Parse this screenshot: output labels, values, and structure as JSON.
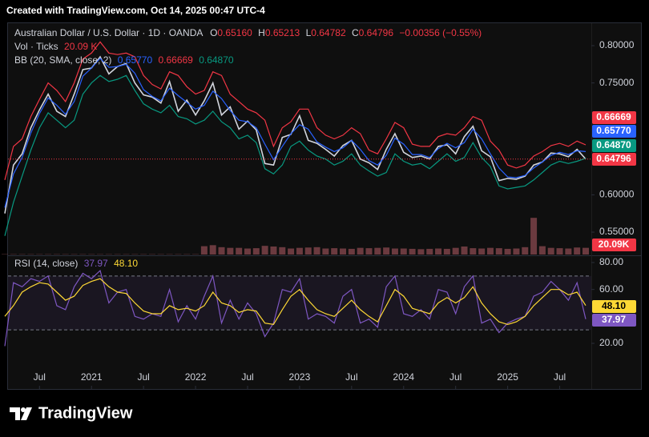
{
  "header": {
    "created": "Created with TradingView.com, Oct 14, 2025 00:47 UTC-4"
  },
  "legend": {
    "symbol": "Australian Dollar / U.S. Dollar · 1D · OANDA",
    "ohlc": [
      {
        "key": "O",
        "value": "0.65160"
      },
      {
        "key": "H",
        "value": "0.65213"
      },
      {
        "key": "L",
        "value": "0.64782"
      },
      {
        "key": "C",
        "value": "0.64796"
      }
    ],
    "change": "−0.00356 (−0.55%)",
    "volume": {
      "title": "Vol · Ticks",
      "value": "20.09 K"
    },
    "bb": {
      "title": "BB (20, SMA, close, 2)",
      "values": [
        "0.65770",
        "0.66669",
        "0.64870"
      ]
    },
    "rsi": {
      "title": "RSI (14, close)",
      "values": [
        "37.97",
        "48.10"
      ]
    }
  },
  "footer": {
    "brand": "TradingView"
  },
  "chart_data": {
    "type": "line",
    "x": [
      "2020-03",
      "2020-04",
      "2020-05",
      "2020-06",
      "2020-07",
      "2020-08",
      "2020-09",
      "2020-10",
      "2020-11",
      "2020-12",
      "2021-01",
      "2021-02",
      "2021-03",
      "2021-04",
      "2021-05",
      "2021-06",
      "2021-07",
      "2021-08",
      "2021-09",
      "2021-10",
      "2021-11",
      "2021-12",
      "2022-01",
      "2022-02",
      "2022-03",
      "2022-04",
      "2022-05",
      "2022-06",
      "2022-07",
      "2022-08",
      "2022-09",
      "2022-10",
      "2022-11",
      "2022-12",
      "2023-01",
      "2023-02",
      "2023-03",
      "2023-04",
      "2023-05",
      "2023-06",
      "2023-07",
      "2023-08",
      "2023-09",
      "2023-10",
      "2023-11",
      "2023-12",
      "2024-01",
      "2024-02",
      "2024-03",
      "2024-04",
      "2024-05",
      "2024-06",
      "2024-07",
      "2024-08",
      "2024-09",
      "2024-10",
      "2024-11",
      "2024-12",
      "2025-01",
      "2025-02",
      "2025-03",
      "2025-04",
      "2025-05",
      "2025-06",
      "2025-07",
      "2025-08",
      "2025-09",
      "2025-10"
    ],
    "xlim": [
      "2020-03",
      "2025-10"
    ],
    "xticks": [
      {
        "value": "2020-07",
        "label": "Jul"
      },
      {
        "value": "2021-01",
        "label": "2021"
      },
      {
        "value": "2021-07",
        "label": "Jul"
      },
      {
        "value": "2022-01",
        "label": "2022"
      },
      {
        "value": "2022-07",
        "label": "Jul"
      },
      {
        "value": "2023-01",
        "label": "2023"
      },
      {
        "value": "2023-07",
        "label": "Jul"
      },
      {
        "value": "2024-01",
        "label": "2024"
      },
      {
        "value": "2024-07",
        "label": "Jul"
      },
      {
        "value": "2025-01",
        "label": "2025"
      },
      {
        "value": "2025-07",
        "label": "Jul"
      }
    ],
    "ylim": [
      0.52,
      0.829
    ],
    "yticks": [
      {
        "value": 0.55,
        "label": "0.55000"
      },
      {
        "value": 0.6,
        "label": "0.60000"
      },
      {
        "value": 0.75,
        "label": "0.75000"
      },
      {
        "value": 0.8,
        "label": "0.80000"
      }
    ],
    "grid": false,
    "series": [
      {
        "color": "#d1d4dc",
        "values": [
          0.575,
          0.64,
          0.655,
          0.69,
          0.714,
          0.735,
          0.712,
          0.705,
          0.735,
          0.768,
          0.77,
          0.785,
          0.762,
          0.772,
          0.776,
          0.75,
          0.734,
          0.731,
          0.723,
          0.752,
          0.712,
          0.727,
          0.707,
          0.726,
          0.75,
          0.707,
          0.718,
          0.688,
          0.699,
          0.687,
          0.642,
          0.64,
          0.677,
          0.681,
          0.706,
          0.673,
          0.669,
          0.661,
          0.652,
          0.666,
          0.673,
          0.648,
          0.643,
          0.634,
          0.661,
          0.682,
          0.657,
          0.65,
          0.652,
          0.648,
          0.665,
          0.667,
          0.655,
          0.678,
          0.692,
          0.659,
          0.651,
          0.619,
          0.622,
          0.621,
          0.625,
          0.64,
          0.644,
          0.656,
          0.655,
          0.651,
          0.661,
          0.648
        ]
      },
      {
        "color": "#f23645",
        "values": [
          0.62,
          0.665,
          0.675,
          0.705,
          0.728,
          0.75,
          0.74,
          0.725,
          0.75,
          0.782,
          0.79,
          0.805,
          0.79,
          0.788,
          0.79,
          0.785,
          0.76,
          0.748,
          0.742,
          0.765,
          0.76,
          0.745,
          0.735,
          0.74,
          0.765,
          0.76,
          0.735,
          0.725,
          0.715,
          0.71,
          0.7,
          0.665,
          0.69,
          0.698,
          0.715,
          0.715,
          0.69,
          0.68,
          0.675,
          0.68,
          0.69,
          0.682,
          0.66,
          0.655,
          0.675,
          0.697,
          0.69,
          0.668,
          0.665,
          0.665,
          0.678,
          0.682,
          0.68,
          0.69,
          0.705,
          0.7,
          0.672,
          0.66,
          0.64,
          0.636,
          0.64,
          0.652,
          0.658,
          0.666,
          0.669,
          0.665,
          0.672,
          0.667
        ]
      },
      {
        "color": "#2962ff",
        "values": [
          0.583,
          0.628,
          0.65,
          0.683,
          0.709,
          0.73,
          0.72,
          0.708,
          0.725,
          0.759,
          0.77,
          0.783,
          0.771,
          0.772,
          0.775,
          0.763,
          0.741,
          0.732,
          0.726,
          0.743,
          0.733,
          0.724,
          0.715,
          0.72,
          0.739,
          0.729,
          0.713,
          0.7,
          0.698,
          0.69,
          0.668,
          0.647,
          0.665,
          0.682,
          0.694,
          0.688,
          0.671,
          0.664,
          0.658,
          0.663,
          0.673,
          0.661,
          0.646,
          0.64,
          0.653,
          0.676,
          0.668,
          0.654,
          0.654,
          0.65,
          0.662,
          0.669,
          0.663,
          0.67,
          0.688,
          0.675,
          0.655,
          0.636,
          0.624,
          0.623,
          0.626,
          0.636,
          0.644,
          0.653,
          0.657,
          0.654,
          0.659,
          0.658
        ]
      },
      {
        "color": "#089981",
        "values": [
          0.545,
          0.59,
          0.625,
          0.66,
          0.69,
          0.71,
          0.7,
          0.69,
          0.7,
          0.735,
          0.75,
          0.76,
          0.752,
          0.755,
          0.76,
          0.74,
          0.722,
          0.715,
          0.71,
          0.72,
          0.705,
          0.702,
          0.695,
          0.7,
          0.712,
          0.698,
          0.69,
          0.675,
          0.68,
          0.67,
          0.635,
          0.628,
          0.64,
          0.665,
          0.672,
          0.66,
          0.652,
          0.648,
          0.64,
          0.645,
          0.655,
          0.64,
          0.632,
          0.625,
          0.63,
          0.655,
          0.645,
          0.64,
          0.642,
          0.635,
          0.645,
          0.655,
          0.645,
          0.65,
          0.67,
          0.65,
          0.638,
          0.612,
          0.608,
          0.61,
          0.612,
          0.62,
          0.63,
          0.64,
          0.645,
          0.642,
          0.645,
          0.649
        ]
      }
    ],
    "price_labels": [
      {
        "value": 0.66669,
        "label": "0.66669",
        "color": "#f23645"
      },
      {
        "value": 0.6577,
        "label": "0.65770",
        "color": "#2962ff"
      },
      {
        "value": 0.6487,
        "label": "0.64870",
        "color": "#089981"
      },
      {
        "value": 0.64796,
        "label": "0.64796",
        "color": "#f23645"
      }
    ],
    "volume": {
      "color": "#6b3a3f",
      "vlim": [
        0,
        120
      ],
      "last_label": {
        "value": 20.09,
        "label": "20.09K",
        "color": "#f23645"
      },
      "values": [
        1,
        1,
        1,
        1,
        1,
        1,
        1,
        1,
        1,
        1,
        1,
        1,
        1,
        1,
        1,
        1,
        1,
        1,
        1,
        1,
        1,
        1,
        1,
        25,
        28,
        22,
        20,
        20,
        18,
        19,
        26,
        24,
        22,
        18,
        20,
        21,
        22,
        18,
        19,
        18,
        17,
        20,
        19,
        20,
        21,
        18,
        18,
        17,
        16,
        17,
        18,
        17,
        20,
        24,
        19,
        18,
        20,
        19,
        17,
        18,
        22,
        110,
        25,
        20,
        19,
        18,
        21,
        20.09
      ]
    },
    "rsi": {
      "ylim": [
        4.55,
        84.75
      ],
      "yticks": [
        {
          "value": 20,
          "label": "20.00"
        },
        {
          "value": 60,
          "label": "60.00"
        },
        {
          "value": 80,
          "label": "80.00"
        }
      ],
      "bands": [
        70,
        30
      ],
      "series": [
        {
          "color": "#7e57c2",
          "values": [
            18,
            65,
            62,
            68,
            66,
            70,
            48,
            45,
            62,
            72,
            68,
            74,
            50,
            58,
            60,
            40,
            38,
            42,
            40,
            60,
            36,
            48,
            38,
            55,
            70,
            35,
            52,
            38,
            50,
            42,
            25,
            35,
            60,
            58,
            68,
            38,
            42,
            40,
            35,
            55,
            60,
            35,
            38,
            32,
            62,
            70,
            42,
            40,
            45,
            38,
            60,
            58,
            42,
            62,
            70,
            35,
            38,
            28,
            35,
            38,
            40,
            55,
            58,
            66,
            60,
            52,
            65,
            37.97
          ]
        },
        {
          "color": "#fdd835",
          "values": [
            40,
            48,
            58,
            62,
            65,
            64,
            58,
            52,
            55,
            63,
            66,
            68,
            62,
            58,
            57,
            50,
            44,
            42,
            42,
            48,
            45,
            46,
            44,
            48,
            58,
            50,
            48,
            43,
            45,
            44,
            35,
            34,
            45,
            55,
            60,
            52,
            45,
            42,
            40,
            46,
            52,
            45,
            40,
            36,
            48,
            60,
            55,
            46,
            44,
            42,
            50,
            54,
            50,
            54,
            62,
            50,
            42,
            36,
            34,
            36,
            40,
            48,
            54,
            60,
            60,
            56,
            58,
            48.1
          ]
        }
      ],
      "price_labels": [
        {
          "value": 48.1,
          "label": "48.10",
          "color": "#fdd835"
        },
        {
          "value": 37.97,
          "label": "37.97",
          "color": "#7e57c2"
        }
      ]
    }
  }
}
